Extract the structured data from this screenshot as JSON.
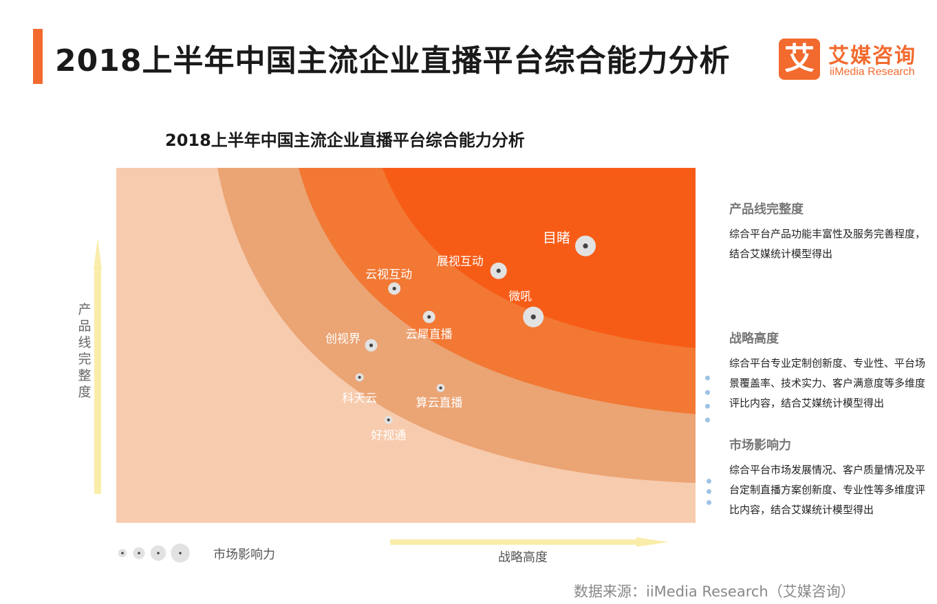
{
  "header": {
    "title": "2018上半年中国主流企业直播平台综合能力分析",
    "accent_color": "#f26a2e"
  },
  "logo": {
    "mark": "艾",
    "name_cn": "艾媒咨询",
    "name_en": "iiMedia Research"
  },
  "chart_data": {
    "type": "scatter",
    "title": "2018上半年中国主流企业直播平台综合能力分析",
    "xlabel": "战略高度",
    "ylabel": "产品线完整度",
    "size_label": "市场影响力",
    "xlim": [
      0,
      100
    ],
    "ylim": [
      0,
      100
    ],
    "grid": false,
    "legend_position": "bottom-left",
    "zone_colors": [
      "#f7cbad",
      "#eba474",
      "#f27834",
      "#f75c17"
    ],
    "point_color": "#e2e2e2",
    "points": [
      {
        "name": "目睹",
        "x": 81,
        "y": 78,
        "size": 4
      },
      {
        "name": "展视互动",
        "x": 66,
        "y": 71,
        "size": 3
      },
      {
        "name": "微吼",
        "x": 72,
        "y": 58,
        "size": 4
      },
      {
        "name": "云视互动",
        "x": 48,
        "y": 66,
        "size": 2
      },
      {
        "name": "云犀直播",
        "x": 54,
        "y": 58,
        "size": 2
      },
      {
        "name": "创视界",
        "x": 44,
        "y": 50,
        "size": 2
      },
      {
        "name": "科天云",
        "x": 42,
        "y": 41,
        "size": 1
      },
      {
        "name": "算云直播",
        "x": 56,
        "y": 38,
        "size": 1
      },
      {
        "name": "好视通",
        "x": 47,
        "y": 29,
        "size": 1
      }
    ]
  },
  "legend": {
    "label": "市场影响力",
    "sizes": [
      1,
      2,
      3,
      4
    ]
  },
  "sidebar": {
    "sections": [
      {
        "heading": "产品线完整度",
        "body": "综合平台产品功能丰富性及服务完善程度，结合艾媒统计模型得出"
      },
      {
        "heading": "战略高度",
        "body": "综合平台专业定制创新度、专业性、平台场景覆盖率、技术实力、客户满意度等多维度评比内容，结合艾媒统计模型得出"
      },
      {
        "heading": "市场影响力",
        "body": "综合平台市场发展情况、客户质量情况及平台定制直播方案创新度、专业性等多维度评比内容，结合艾媒统计模型得出"
      }
    ]
  },
  "footer": {
    "source": "数据来源：iiMedia Research（艾媒咨询）"
  }
}
